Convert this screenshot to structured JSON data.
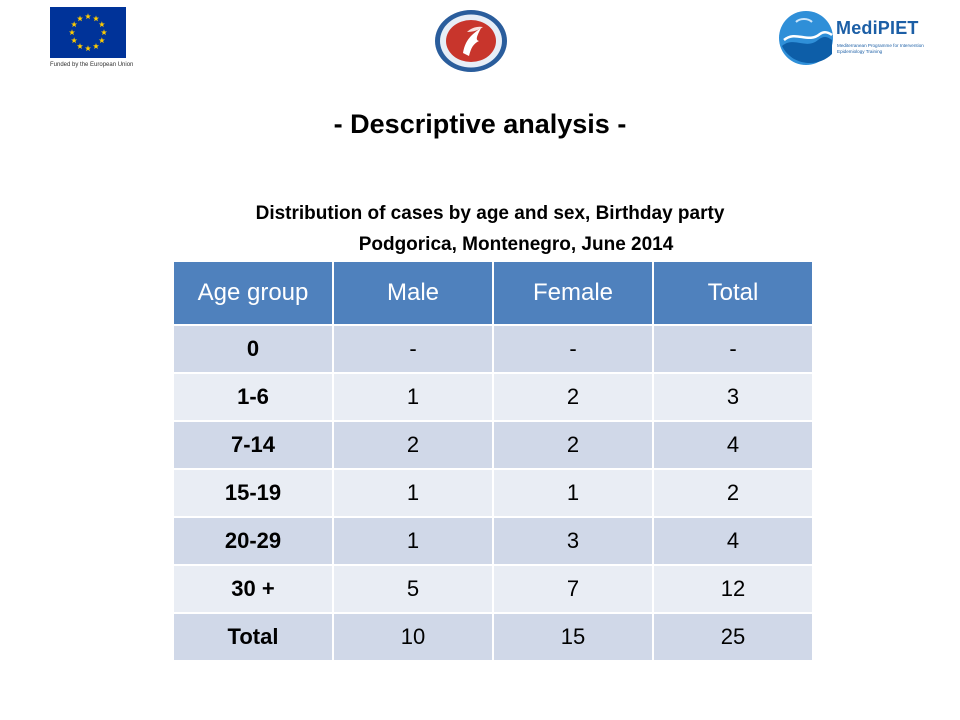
{
  "header": {
    "eu_caption": "Funded by the European Union",
    "medipiet_name": "MediPIET",
    "medipiet_tagline": "Mediterranean Programme for Intervention Epidemiology Training"
  },
  "title": "- Descriptive analysis -",
  "subtitle": {
    "line1": "Distribution of cases by age and sex, Birthday party",
    "line2": "Podgorica, Montenegro, June 2014"
  },
  "table": {
    "headers": [
      "Age group",
      "Male",
      "Female",
      "Total"
    ],
    "rows": [
      [
        "0",
        "-",
        "-",
        "-"
      ],
      [
        "1-6",
        "1",
        "2",
        "3"
      ],
      [
        "7-14",
        "2",
        "2",
        "4"
      ],
      [
        "15-19",
        "1",
        "1",
        "2"
      ],
      [
        "20-29",
        "1",
        "3",
        "4"
      ],
      [
        "30 +",
        "5",
        "7",
        "12"
      ],
      [
        "Total",
        "10",
        "15",
        "25"
      ]
    ]
  },
  "colors": {
    "header_bg": "#4f81bd",
    "row_dark": "#d0d8e8",
    "row_light": "#e9edf4",
    "eu_blue": "#003399",
    "eu_star": "#ffcc00",
    "medipiet_blue": "#1c5fa6"
  }
}
